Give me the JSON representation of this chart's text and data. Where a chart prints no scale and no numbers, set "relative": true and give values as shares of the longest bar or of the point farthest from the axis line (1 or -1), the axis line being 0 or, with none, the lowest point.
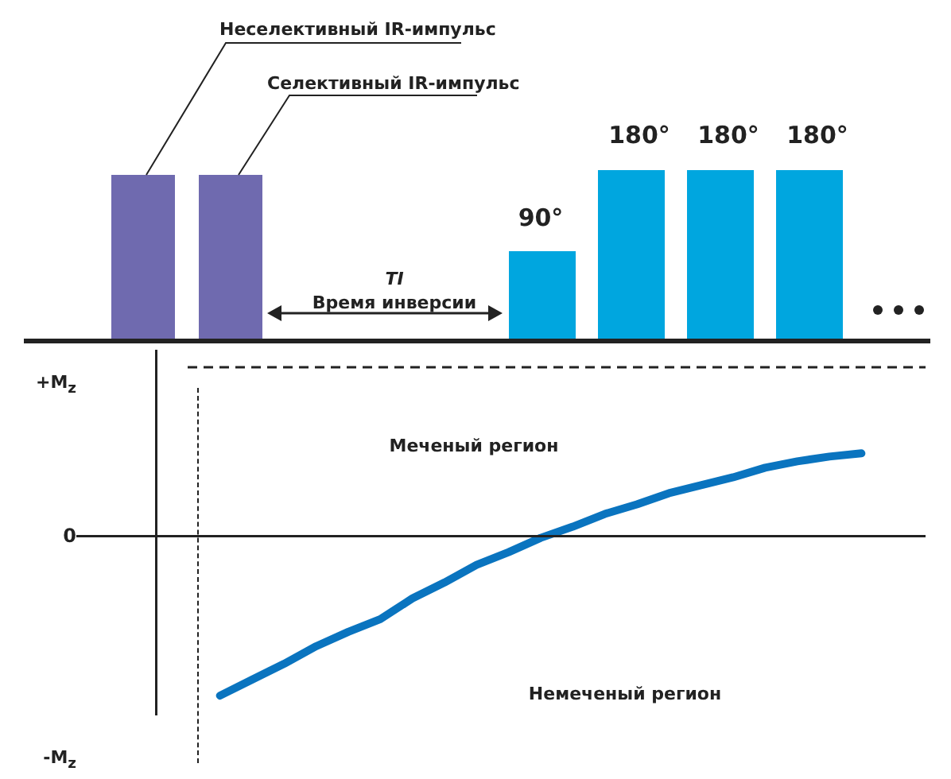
{
  "chart_data": [
    {
      "type": "other",
      "annotations": [
        "Неселективный IR-импульс",
        "Селективный IR-импульс",
        "TI",
        "Время инверсии",
        "90°",
        "180°",
        "180°",
        "180°"
      ]
    },
    {
      "type": "line",
      "relative": true,
      "categories": [
        null,
        null,
        null,
        null,
        null,
        null,
        null,
        null,
        null,
        null,
        null,
        null,
        null,
        null,
        null,
        null,
        null,
        null,
        null,
        null,
        null,
        null,
        null,
        null,
        null
      ],
      "series": [
        {
          "color": "#0a74bf",
          "values": [
            null,
            null,
            -1,
            -0.9,
            -0.8,
            -0.69,
            -0.6,
            -0.52,
            -0.39,
            -0.29,
            -0.18,
            -0.1,
            -0.01,
            0.06,
            0.14,
            0.2,
            0.27,
            0.32,
            0.37,
            0.43,
            0.47,
            0.5,
            0.52,
            null,
            null
          ]
        }
      ],
      "ref_lines": [
        {
          "axis": "y",
          "value": 0,
          "label": "0",
          "color": "#222222",
          "line_style": "solid"
        },
        {
          "axis": "y",
          "value": 1.06,
          "color": "#222222",
          "line_style": "dashed"
        }
      ],
      "annotations": [
        "Меченый регион",
        "Немеченый регион",
        "-M$_{z}$",
        "+M$_{z}$"
      ],
      "marker": "none",
      "line_style": "solid",
      "legend": false,
      "grid": false
    }
  ]
}
